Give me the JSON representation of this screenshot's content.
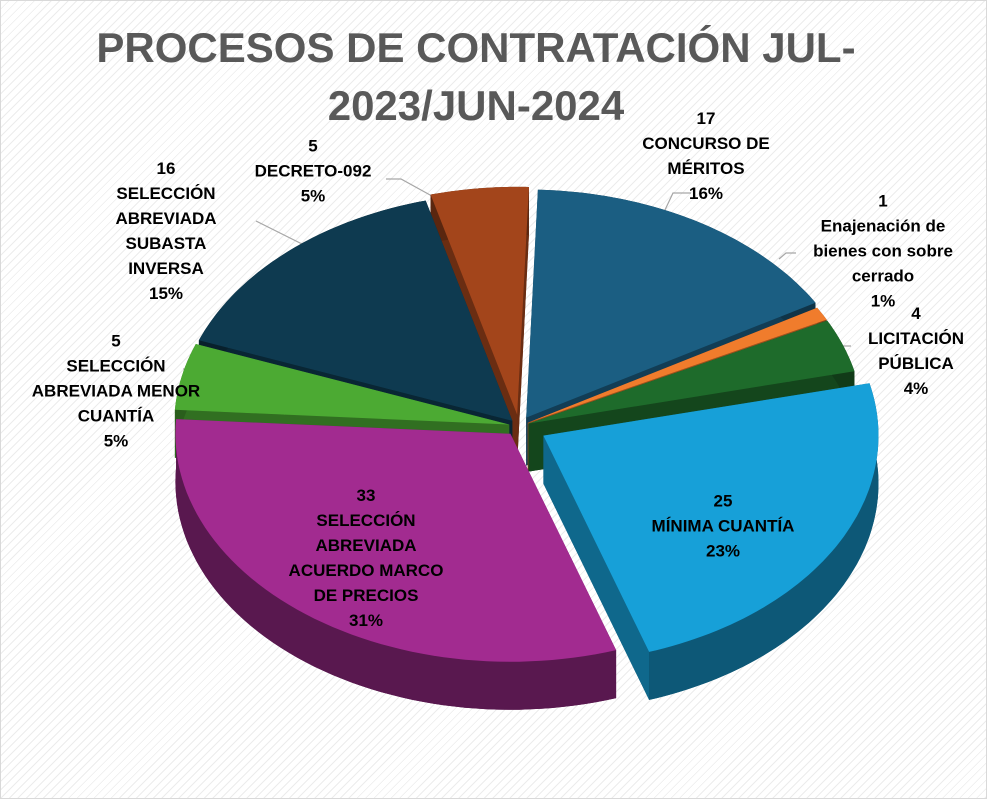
{
  "chart_data": {
    "type": "pie",
    "title": "PROCESOS DE CONTRATACIÓN JUL-2023/JUN-2024",
    "categories": [
      "CONCURSO DE MÉRITOS",
      "Enajenación de bienes con sobre cerrado",
      "LICITACIÓN PÚBLICA",
      "MÍNIMA CUANTÍA",
      "SELECCIÓN ABREVIADA ACUERDO MARCO DE PRECIOS",
      "SELECCIÓN ABREVIADA MENOR CUANTÍA",
      "SELECCIÓN ABREVIADA SUBASTA INVERSA",
      "DECRETO-092"
    ],
    "values": [
      17,
      1,
      4,
      25,
      33,
      5,
      16,
      5
    ],
    "percent_labels": [
      "16%",
      "1%",
      "4%",
      "23%",
      "31%",
      "5%",
      "15%",
      "5%"
    ],
    "colors": [
      "#1b5e82",
      "#f07c2c",
      "#1e6b2b",
      "#17a0d8",
      "#a22b90",
      "#4caa33",
      "#0e3a50",
      "#a3451b"
    ]
  }
}
